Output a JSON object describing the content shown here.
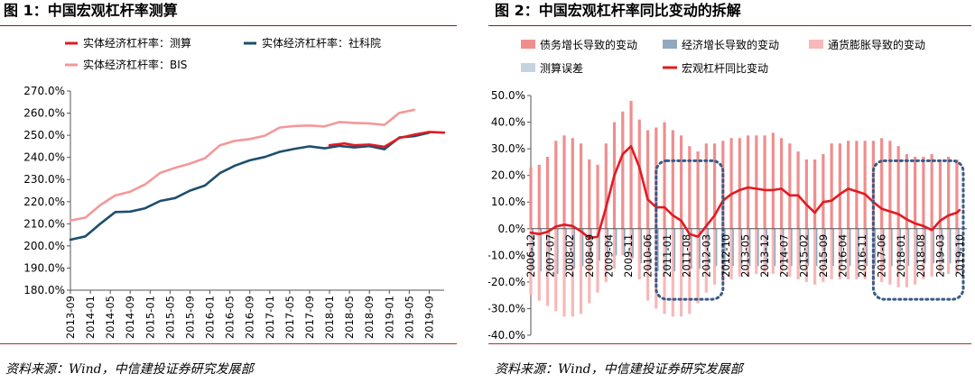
{
  "left": {
    "title": "图 1：中国宏观杠杆率测算",
    "source": "资料来源：Wind，中信建投证券研究发展部"
  },
  "right": {
    "title": "图 2：中国宏观杠杆率同比变动的拆解",
    "source": "资料来源：Wind，中信建投证券研究发展部"
  },
  "colors": {
    "rule": "#8b1a1a",
    "calc": "#e01b22",
    "cass": "#1d4e6e",
    "bis": "#f4989a",
    "debt_bar": "#ef8e8e",
    "econ_bar": "#8fa9bf",
    "infl_bar": "#f6b8b8",
    "err_bar": "#c5d3e0",
    "yoy_line": "#e01b22",
    "oval": "#3a5a8a"
  },
  "chart_data": [
    {
      "type": "line",
      "legend": [
        {
          "name": "实体经济杠杆率：测算",
          "series": 0
        },
        {
          "name": "实体经济杠杆率：社科院",
          "series": 1
        },
        {
          "name": "实体经济杠杆率：BIS",
          "series": 2
        }
      ],
      "ylim": [
        180,
        270
      ],
      "y_ticks": [
        "270.0%",
        "260.0%",
        "250.0%",
        "240.0%",
        "230.0%",
        "220.0%",
        "210.0%",
        "200.0%",
        "190.0%",
        "180.0%"
      ],
      "x_labels": [
        "2013-09",
        "2014-01",
        "2014-05",
        "2014-09",
        "2015-01",
        "2015-05",
        "2015-09",
        "2016-01",
        "2016-05",
        "2016-09",
        "2017-01",
        "2017-05",
        "2017-09",
        "2018-01",
        "2018-05",
        "2018-09",
        "2019-01",
        "2019-05",
        "2019-09"
      ],
      "x_start": "2013-09",
      "x_end": "2019-12",
      "series": [
        {
          "name": "实体经济杠杆率：测算",
          "points": [
            [
              "2018-01",
              245.5
            ],
            [
              "2018-04",
              246.3
            ],
            [
              "2018-06",
              245.5
            ],
            [
              "2018-09",
              245.8
            ],
            [
              "2018-12",
              244.8
            ],
            [
              "2019-03",
              248.8
            ],
            [
              "2019-06",
              250.3
            ],
            [
              "2019-09",
              251.5
            ],
            [
              "2019-12",
              251.2
            ]
          ]
        },
        {
          "name": "实体经济杠杆率：社科院",
          "points": [
            [
              "2013-09",
              202.8
            ],
            [
              "2013-12",
              204.3
            ],
            [
              "2014-03",
              210.0
            ],
            [
              "2014-06",
              215.3
            ],
            [
              "2014-09",
              215.5
            ],
            [
              "2014-12",
              217.0
            ],
            [
              "2015-03",
              220.3
            ],
            [
              "2015-06",
              221.6
            ],
            [
              "2015-09",
              225.0
            ],
            [
              "2015-12",
              227.3
            ],
            [
              "2016-03",
              232.9
            ],
            [
              "2016-06",
              236.3
            ],
            [
              "2016-09",
              238.7
            ],
            [
              "2016-12",
              240.2
            ],
            [
              "2017-03",
              242.5
            ],
            [
              "2017-06",
              243.9
            ],
            [
              "2017-09",
              245.0
            ],
            [
              "2017-12",
              244.1
            ],
            [
              "2018-03",
              245.2
            ],
            [
              "2018-06",
              244.5
            ],
            [
              "2018-09",
              245.1
            ],
            [
              "2018-12",
              243.7
            ],
            [
              "2019-03",
              249.0
            ],
            [
              "2019-06",
              249.6
            ],
            [
              "2019-09",
              251.2
            ]
          ]
        },
        {
          "name": "实体经济杠杆率：BIS",
          "points": [
            [
              "2013-09",
              211.5
            ],
            [
              "2013-12",
              212.8
            ],
            [
              "2014-03",
              218.5
            ],
            [
              "2014-06",
              222.8
            ],
            [
              "2014-09",
              224.5
            ],
            [
              "2014-12",
              227.8
            ],
            [
              "2015-03",
              233.0
            ],
            [
              "2015-06",
              235.3
            ],
            [
              "2015-09",
              237.2
            ],
            [
              "2015-12",
              239.6
            ],
            [
              "2016-03",
              245.5
            ],
            [
              "2016-06",
              247.5
            ],
            [
              "2016-09",
              248.3
            ],
            [
              "2016-12",
              249.8
            ],
            [
              "2017-03",
              253.5
            ],
            [
              "2017-06",
              254.2
            ],
            [
              "2017-09",
              254.4
            ],
            [
              "2017-12",
              254.0
            ],
            [
              "2018-03",
              256.0
            ],
            [
              "2018-06",
              255.6
            ],
            [
              "2018-09",
              255.4
            ],
            [
              "2018-12",
              254.7
            ],
            [
              "2019-03",
              260.1
            ],
            [
              "2019-06",
              261.5
            ]
          ]
        }
      ]
    },
    {
      "type": "bar",
      "legend": [
        {
          "name": "债务增长导致的变动",
          "series": "debt"
        },
        {
          "name": "经济增长导致的变动",
          "series": "econ"
        },
        {
          "name": "通货膨胀导致的变动",
          "series": "infl"
        },
        {
          "name": "测算误差",
          "series": "err"
        },
        {
          "name": "宏观杠杆同比变动",
          "series": "yoy"
        }
      ],
      "ylim": [
        -40,
        50
      ],
      "y_ticks": [
        "50.0%",
        "40.0%",
        "30.0%",
        "20.0%",
        "10.0%",
        "0.0%",
        "-10.0%",
        "-20.0%",
        "-30.0%",
        "-40.0%"
      ],
      "x_labels": [
        "2006-12",
        "2007-07",
        "2008-02",
        "2008-09",
        "2009-04",
        "2009-11",
        "2010-06",
        "2011-01",
        "2011-08",
        "2012-03",
        "2012-10",
        "2013-05",
        "2013-12",
        "2014-07",
        "2015-02",
        "2015-09",
        "2016-04",
        "2016-11",
        "2017-06",
        "2018-01",
        "2018-08",
        "2019-03",
        "2019-10"
      ],
      "x_start": "2006-12",
      "x_end": "2019-10",
      "bar_step_months": 3,
      "debt_positive": [
        23,
        24,
        27,
        33,
        35,
        34,
        32,
        26,
        24,
        32,
        40,
        44,
        48,
        41,
        37,
        38,
        40,
        37,
        35,
        31,
        29,
        32,
        32,
        33,
        34,
        34,
        35,
        35,
        35,
        36,
        34,
        32,
        29,
        26,
        26,
        28,
        32,
        32,
        33,
        33,
        33,
        33,
        34,
        33,
        31,
        28,
        27,
        27,
        28,
        26,
        27,
        26
      ],
      "debt_negative": [
        -25,
        -27,
        -29,
        -31,
        -33,
        -33,
        -32,
        -28,
        -24,
        -20,
        -15,
        -10,
        -12,
        -19,
        -27,
        -30,
        -32,
        -33,
        -33,
        -32,
        -28,
        -24,
        -21,
        -20,
        -19,
        -18,
        -18,
        -17,
        -17,
        -17,
        -17,
        -18,
        -19,
        -20,
        -21,
        -20,
        -19,
        -19,
        -19,
        -19,
        -19,
        -20,
        -20,
        -21,
        -22,
        -22,
        -21,
        -19,
        -18,
        -17,
        -17,
        -17
      ],
      "econ_negative": [
        -15,
        -16,
        -16,
        -17,
        -16,
        -15,
        -14,
        -13,
        -12,
        -11,
        -10,
        -10,
        -11,
        -13,
        -15,
        -16,
        -16,
        -16,
        -15,
        -15,
        -15,
        -15,
        -14,
        -14,
        -14,
        -14,
        -14,
        -14,
        -14,
        -14,
        -14,
        -14,
        -14,
        -14,
        -14,
        -14,
        -14,
        -14,
        -14,
        -14,
        -14,
        -14,
        -14,
        -14,
        -14,
        -14,
        -14,
        -13,
        -13,
        -13,
        -13,
        -13
      ],
      "yoy_points": [
        [
          "2006-12",
          -1.5
        ],
        [
          "2007-03",
          -2.0
        ],
        [
          "2007-06",
          -1.2
        ],
        [
          "2007-09",
          0.8
        ],
        [
          "2007-12",
          1.5
        ],
        [
          "2008-03",
          1.0
        ],
        [
          "2008-06",
          -1.0
        ],
        [
          "2008-09",
          -3.5
        ],
        [
          "2008-12",
          -3.0
        ],
        [
          "2009-03",
          8.0
        ],
        [
          "2009-06",
          20.0
        ],
        [
          "2009-09",
          28.0
        ],
        [
          "2009-12",
          31.0
        ],
        [
          "2010-03",
          23.0
        ],
        [
          "2010-06",
          11.0
        ],
        [
          "2010-09",
          8.0
        ],
        [
          "2010-12",
          8.0
        ],
        [
          "2011-03",
          5.0
        ],
        [
          "2011-06",
          3.0
        ],
        [
          "2011-09",
          -2.0
        ],
        [
          "2011-12",
          -3.0
        ],
        [
          "2012-03",
          1.0
        ],
        [
          "2012-06",
          5.0
        ],
        [
          "2012-09",
          10.5
        ],
        [
          "2012-12",
          13.0
        ],
        [
          "2013-03",
          14.5
        ],
        [
          "2013-06",
          15.5
        ],
        [
          "2013-09",
          15.0
        ],
        [
          "2013-12",
          14.5
        ],
        [
          "2014-03",
          14.5
        ],
        [
          "2014-06",
          15.0
        ],
        [
          "2014-09",
          12.5
        ],
        [
          "2014-12",
          12.5
        ],
        [
          "2015-03",
          9.0
        ],
        [
          "2015-06",
          6.0
        ],
        [
          "2015-09",
          10.0
        ],
        [
          "2015-12",
          10.5
        ],
        [
          "2016-03",
          13.0
        ],
        [
          "2016-06",
          15.0
        ],
        [
          "2016-09",
          14.0
        ],
        [
          "2016-12",
          13.0
        ],
        [
          "2017-03",
          10.0
        ],
        [
          "2017-06",
          7.5
        ],
        [
          "2017-09",
          6.5
        ],
        [
          "2017-12",
          5.5
        ],
        [
          "2018-03",
          3.5
        ],
        [
          "2018-06",
          2.0
        ],
        [
          "2018-09",
          1.0
        ],
        [
          "2018-12",
          -0.5
        ],
        [
          "2019-03",
          3.0
        ],
        [
          "2019-06",
          5.0
        ],
        [
          "2019-09",
          6.0
        ],
        [
          "2019-10",
          7.0
        ]
      ],
      "highlight_ranges": [
        [
          "2010-09",
          "2012-09"
        ],
        [
          "2017-03",
          "2019-12"
        ]
      ]
    }
  ]
}
